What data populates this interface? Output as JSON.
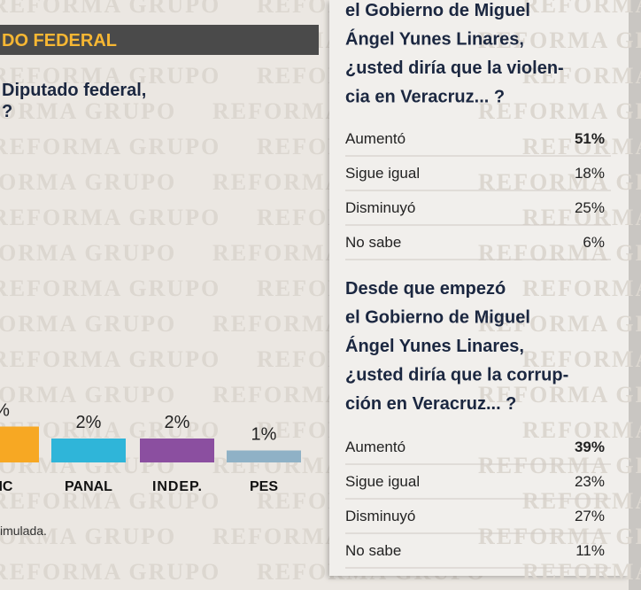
{
  "watermark": "REFORMA GRUPO",
  "left": {
    "header": "DO FEDERAL",
    "question": [
      "Diputado federal,",
      "?"
    ],
    "note": "imulada."
  },
  "chart_data": {
    "type": "bar",
    "categories": [
      "MC",
      "PANAL",
      "INDEP.",
      "PES"
    ],
    "values": [
      3,
      2,
      2,
      1
    ],
    "value_labels": [
      "%",
      "2%",
      "2%",
      "1%"
    ],
    "colors": [
      "#f7a823",
      "#2fb5d9",
      "#8b4fa0",
      "#8fb1c6"
    ]
  },
  "panels": [
    {
      "question": [
        "el Gobierno de Miguel",
        "Ángel Yunes Linares,",
        "¿usted diría que la violen-",
        "cia en Veracruz... ?"
      ],
      "rows": [
        [
          "Aumentó",
          "51%"
        ],
        [
          "Sigue igual",
          "18%"
        ],
        [
          "Disminuyó",
          "25%"
        ],
        [
          "No sabe",
          "6%"
        ]
      ]
    },
    {
      "question": [
        "Desde que empezó",
        "el Gobierno de Miguel",
        "Ángel Yunes Linares,",
        "¿usted diría que la corrup-",
        "ción en Veracruz... ?"
      ],
      "rows": [
        [
          "Aumentó",
          "39%"
        ],
        [
          "Sigue igual",
          "23%"
        ],
        [
          "Disminuyó",
          "27%"
        ],
        [
          "No sabe",
          "11%"
        ]
      ]
    }
  ]
}
